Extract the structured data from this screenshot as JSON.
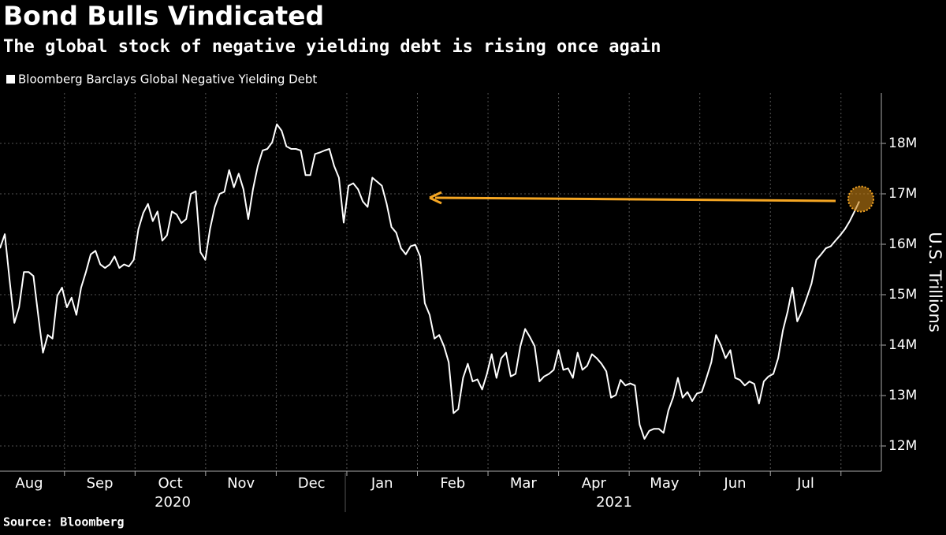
{
  "chart_data": {
    "type": "line",
    "title": "Bond Bulls Vindicated",
    "subtitle": "The global stock of negative yielding debt is rising once again",
    "source": "Source: Bloomberg",
    "y_axis_label": "U.S. Trillions",
    "months": [
      "Aug",
      "Sep",
      "Oct",
      "Nov",
      "Dec",
      "Jan",
      "Feb",
      "Mar",
      "Apr",
      "May",
      "Jun",
      "Jul"
    ],
    "years": [
      "2020",
      "2021"
    ],
    "ylim": [
      11.5,
      19
    ],
    "yticks": [
      {
        "value": 12,
        "label": "12M"
      },
      {
        "value": 13,
        "label": "13M"
      },
      {
        "value": 14,
        "label": "14M"
      },
      {
        "value": 15,
        "label": "15M"
      },
      {
        "value": 16,
        "label": "16M"
      },
      {
        "value": 17,
        "label": "17M"
      },
      {
        "value": 18,
        "label": "18M"
      }
    ],
    "grid": true,
    "series": [
      {
        "name": "Bloomberg Barclays Global Negative Yielding Debt",
        "color": "#ffffff",
        "values": [
          15.92,
          16.2,
          15.3,
          14.44,
          14.75,
          15.45,
          15.45,
          15.37,
          14.6,
          13.85,
          14.2,
          14.13,
          14.98,
          15.14,
          14.75,
          14.94,
          14.6,
          15.14,
          15.45,
          15.8,
          15.87,
          15.6,
          15.53,
          15.6,
          15.76,
          15.53,
          15.6,
          15.56,
          15.69,
          16.3,
          16.62,
          16.8,
          16.46,
          16.65,
          16.07,
          16.18,
          16.65,
          16.59,
          16.42,
          16.5,
          17.0,
          17.05,
          15.84,
          15.69,
          16.3,
          16.74,
          17.0,
          17.04,
          17.47,
          17.13,
          17.4,
          17.09,
          16.5,
          17.09,
          17.55,
          17.86,
          17.89,
          18.02,
          18.38,
          18.25,
          17.94,
          17.89,
          17.89,
          17.86,
          17.37,
          17.37,
          17.79,
          17.82,
          17.86,
          17.89,
          17.55,
          17.32,
          16.43,
          17.16,
          17.21,
          17.09,
          16.85,
          16.74,
          17.32,
          17.24,
          17.16,
          16.8,
          16.34,
          16.23,
          15.92,
          15.8,
          15.96,
          15.99,
          15.76,
          14.83,
          14.6,
          14.13,
          14.2,
          13.98,
          13.66,
          12.65,
          12.73,
          13.35,
          13.63,
          13.28,
          13.32,
          13.12,
          13.43,
          13.82,
          13.35,
          13.74,
          13.85,
          13.38,
          13.43,
          13.98,
          14.32,
          14.16,
          13.98,
          13.28,
          13.38,
          13.43,
          13.51,
          13.9,
          13.51,
          13.54,
          13.35,
          13.85,
          13.51,
          13.59,
          13.82,
          13.74,
          13.63,
          13.48,
          12.96,
          13.01,
          13.31,
          13.2,
          13.24,
          13.2,
          12.42,
          12.14,
          12.3,
          12.34,
          12.34,
          12.26,
          12.7,
          12.96,
          13.35,
          12.96,
          13.07,
          12.89,
          13.04,
          13.07,
          13.35,
          13.66,
          14.2,
          14.0,
          13.74,
          13.9,
          13.35,
          13.31,
          13.2,
          13.28,
          13.23,
          12.84,
          13.28,
          13.38,
          13.43,
          13.74,
          14.29,
          14.67,
          15.14,
          14.47,
          14.67,
          14.94,
          15.22,
          15.69,
          15.8,
          15.92,
          15.96,
          16.07,
          16.18,
          16.3,
          16.46,
          16.65,
          16.85
        ]
      }
    ]
  }
}
